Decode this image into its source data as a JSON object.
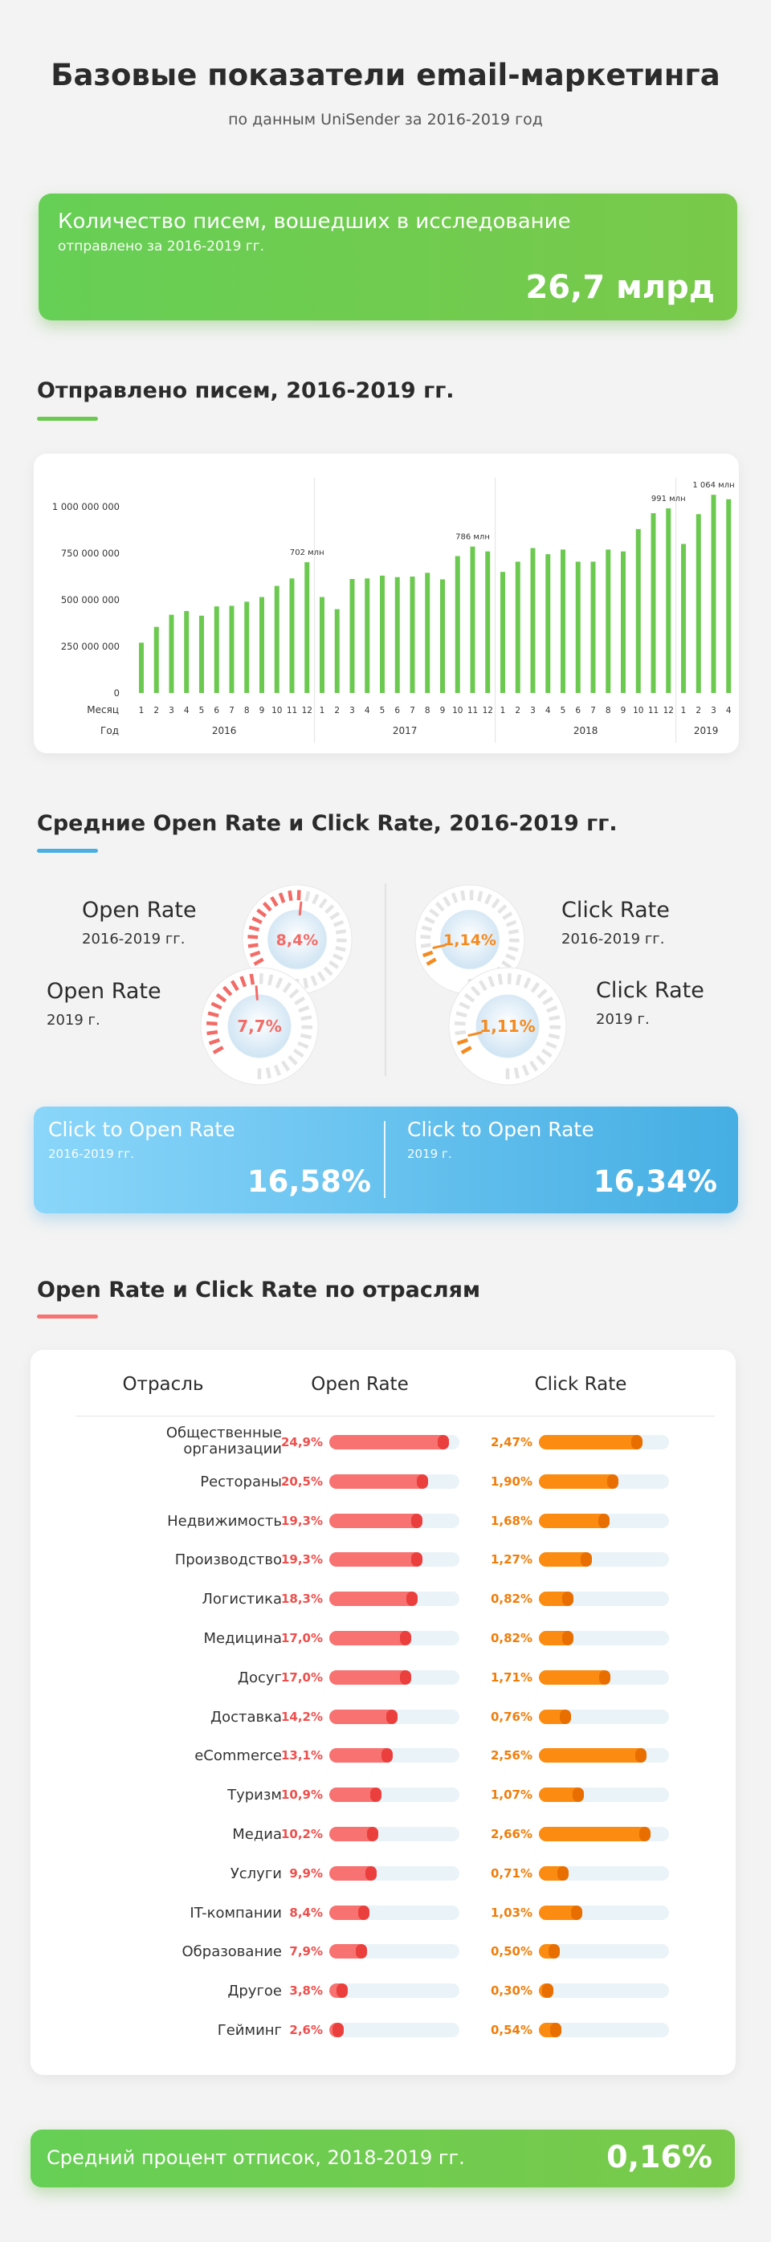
{
  "header": {
    "title": "Базовые показатели email-маркетинга",
    "subtitle": "по данным UniSender за 2016-2019 год"
  },
  "letters_card": {
    "title": "Количество писем, вошедших в исследование",
    "subtitle": "отправлено за 2016-2019 гг.",
    "value": "26,7 млрд"
  },
  "sent_section": {
    "title": "Отправлено писем, 2016-2019 гг.",
    "accent": "#6cc950"
  },
  "chart_data": [
    {
      "type": "bar",
      "title": "Отправлено писем, 2016-2019 гг.",
      "x_row_label": "Месяц",
      "year_row_label": "Год",
      "y_ticks": [
        "1 000 000 000",
        "750 000 000",
        "500 000 000",
        "250 000 000",
        "0"
      ],
      "ylim": [
        0,
        1000000000
      ],
      "grid": false,
      "bar_color": "#6cc950",
      "categories": [
        "1",
        "2",
        "3",
        "4",
        "5",
        "6",
        "7",
        "8",
        "9",
        "10",
        "11",
        "12",
        "1",
        "2",
        "3",
        "4",
        "5",
        "6",
        "7",
        "8",
        "9",
        "10",
        "11",
        "12",
        "1",
        "2",
        "3",
        "4",
        "5",
        "6",
        "7",
        "8",
        "9",
        "10",
        "11",
        "12",
        "1",
        "2",
        "3",
        "4"
      ],
      "years": [
        {
          "label": "2016",
          "count": 12
        },
        {
          "label": "2017",
          "count": 12
        },
        {
          "label": "2018",
          "count": 12
        },
        {
          "label": "2019",
          "count": 4
        }
      ],
      "values": [
        270000000,
        355000000,
        420000000,
        440000000,
        415000000,
        465000000,
        468000000,
        490000000,
        515000000,
        575000000,
        615000000,
        702000000,
        515000000,
        450000000,
        612000000,
        615000000,
        630000000,
        622000000,
        625000000,
        645000000,
        610000000,
        735000000,
        786000000,
        760000000,
        650000000,
        705000000,
        778000000,
        745000000,
        770000000,
        705000000,
        705000000,
        770000000,
        760000000,
        880000000,
        965000000,
        991000000,
        800000000,
        960000000,
        1064000000,
        1040000000
      ],
      "annotations": [
        {
          "index": 11,
          "text": "702 млн"
        },
        {
          "index": 22,
          "text": "786 млн"
        },
        {
          "index": 35,
          "text": "991 млн"
        },
        {
          "index": 38,
          "text": "1 064 млн"
        }
      ]
    },
    {
      "type": "bar",
      "title": "Open Rate и Click Rate по отраслям",
      "columns": [
        "Отрасль",
        "Open Rate",
        "Click Rate"
      ],
      "categories": [
        "Общественные организации",
        "Рестораны",
        "Недвижимость",
        "Производство",
        "Логистика",
        "Медицина",
        "Досуг",
        "Доставка",
        "eCommerce",
        "Туризм",
        "Медиа",
        "Услуги",
        "IT-компании",
        "Образование",
        "Другое",
        "Гейминг"
      ],
      "series": [
        {
          "name": "Open Rate",
          "color": "#f77270",
          "unit": "%",
          "max": 27,
          "values": [
            24.9,
            20.5,
            19.3,
            19.3,
            18.3,
            17.0,
            17.0,
            14.2,
            13.1,
            10.9,
            10.2,
            9.9,
            8.4,
            7.9,
            3.8,
            2.6
          ],
          "labels": [
            "24,9%",
            "20,5%",
            "19,3%",
            "19,3%",
            "18,3%",
            "17,0%",
            "17,0%",
            "14,2%",
            "13,1%",
            "10,9%",
            "10,2%",
            "9,9%",
            "8,4%",
            "7,9%",
            "3,8%",
            "2,6%"
          ]
        },
        {
          "name": "Click Rate",
          "color": "#fb8c11",
          "unit": "%",
          "max": 3.1,
          "values": [
            2.47,
            1.9,
            1.68,
            1.27,
            0.82,
            0.82,
            1.71,
            0.76,
            2.56,
            1.07,
            2.66,
            0.71,
            1.03,
            0.5,
            0.3,
            0.54
          ],
          "labels": [
            "2,47%",
            "1,90%",
            "1,68%",
            "1,27%",
            "0,82%",
            "0,82%",
            "1,71%",
            "0,76%",
            "2,56%",
            "1,07%",
            "2,66%",
            "0,71%",
            "1,03%",
            "0,50%",
            "0,30%",
            "0,54%"
          ]
        }
      ]
    }
  ],
  "rates_section": {
    "title": "Средние Open Rate и Click Rate, 2016-2019 гг.",
    "accent": "#4aaee2",
    "gauges": [
      {
        "label": "Open Rate",
        "period": "2016-2019 гг.",
        "value_text": "8,4%",
        "value": 8.4,
        "color": "#f26b67"
      },
      {
        "label": "Open Rate",
        "period": "2019 г.",
        "value_text": "7,7%",
        "value": 7.7,
        "color": "#f26b67"
      },
      {
        "label": "Click Rate",
        "period": "2016-2019 гг.",
        "value_text": "1,14%",
        "value": 1.14,
        "color": "#f58a1f"
      },
      {
        "label": "Click Rate",
        "period": "2019 г.",
        "value_text": "1,11%",
        "value": 1.11,
        "color": "#f58a1f"
      }
    ]
  },
  "cto_card": {
    "left": {
      "label": "Click to Open Rate",
      "period": "2016-2019 гг.",
      "value": "16,58%"
    },
    "right": {
      "label": "Click to Open Rate",
      "period": "2019 г.",
      "value": "16,34%"
    }
  },
  "industry_section": {
    "title": "Open Rate и Click Rate по отраслям",
    "accent": "#f77270"
  },
  "unsub_card": {
    "label": "Средний процент отписок, 2018-2019 гг.",
    "value": "0,16%"
  }
}
